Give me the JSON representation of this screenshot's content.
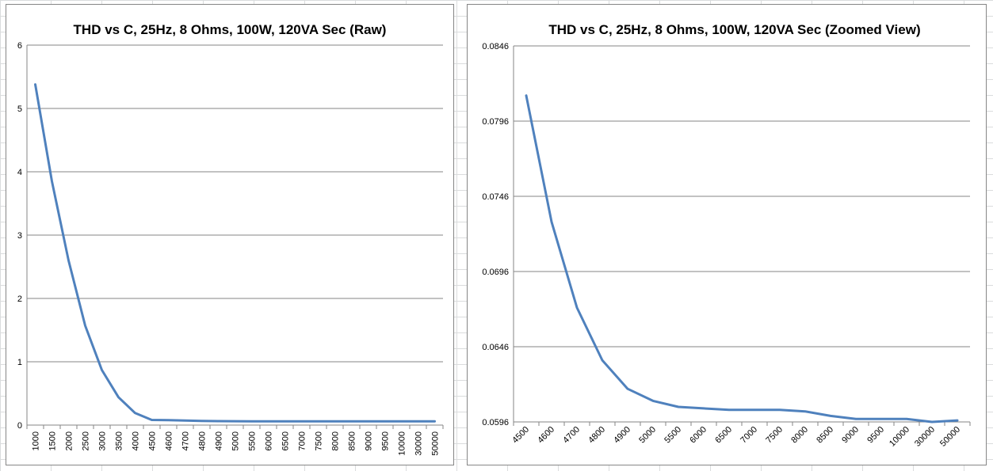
{
  "colors": {
    "series_line": "#4f81bd",
    "gridline": "#868686",
    "axis": "#868686",
    "sheet_grid": "#dadcdd"
  },
  "chart_data": [
    {
      "type": "line",
      "title": "THD vs C, 25Hz, 8 Ohms,  100W, 120VA Sec (Raw)",
      "xlabel": "",
      "ylabel": "",
      "categories": [
        "1000",
        "1500",
        "2000",
        "2500",
        "3000",
        "3500",
        "4000",
        "4500",
        "4600",
        "4700",
        "4800",
        "4900",
        "5000",
        "5500",
        "6000",
        "6500",
        "7000",
        "7500",
        "8000",
        "8500",
        "9000",
        "9500",
        "10000",
        "30000",
        "50000"
      ],
      "series": [
        {
          "values": [
            5.38,
            3.85,
            2.6,
            1.57,
            0.87,
            0.44,
            0.19,
            0.081,
            0.0776,
            0.0716,
            0.0666,
            0.0627,
            0.0612,
            0.0605,
            0.0604,
            0.0603,
            0.0601,
            0.0601,
            0.0599,
            0.0598,
            0.0597,
            0.0598,
            0.0598,
            0.0596,
            0.0597
          ]
        }
      ],
      "ylim": [
        0,
        6
      ],
      "yticks": [
        "0",
        "1",
        "2",
        "3",
        "4",
        "5",
        "6"
      ],
      "grid": true,
      "legend": "none"
    },
    {
      "type": "line",
      "title": "THD vs C, 25Hz, 8 Ohms, 100W, 120VA Sec (Zoomed View)",
      "xlabel": "",
      "ylabel": "",
      "categories": [
        "4500",
        "4600",
        "4700",
        "4800",
        "4900",
        "5000",
        "5500",
        "6000",
        "6500",
        "7000",
        "7500",
        "8000",
        "8500",
        "9000",
        "9500",
        "10000",
        "30000",
        "50000"
      ],
      "series": [
        {
          "values": [
            0.0813,
            0.0729,
            0.0672,
            0.0637,
            0.0618,
            0.061,
            0.0606,
            0.0605,
            0.0604,
            0.0604,
            0.0604,
            0.0603,
            0.06,
            0.0598,
            0.0598,
            0.0598,
            0.0596,
            0.0597
          ]
        }
      ],
      "ylim": [
        0.0596,
        0.0846
      ],
      "yticks": [
        "0.0596",
        "0.0646",
        "0.0696",
        "0.0746",
        "0.0796",
        "0.0846"
      ],
      "grid": true,
      "legend": "none"
    }
  ]
}
